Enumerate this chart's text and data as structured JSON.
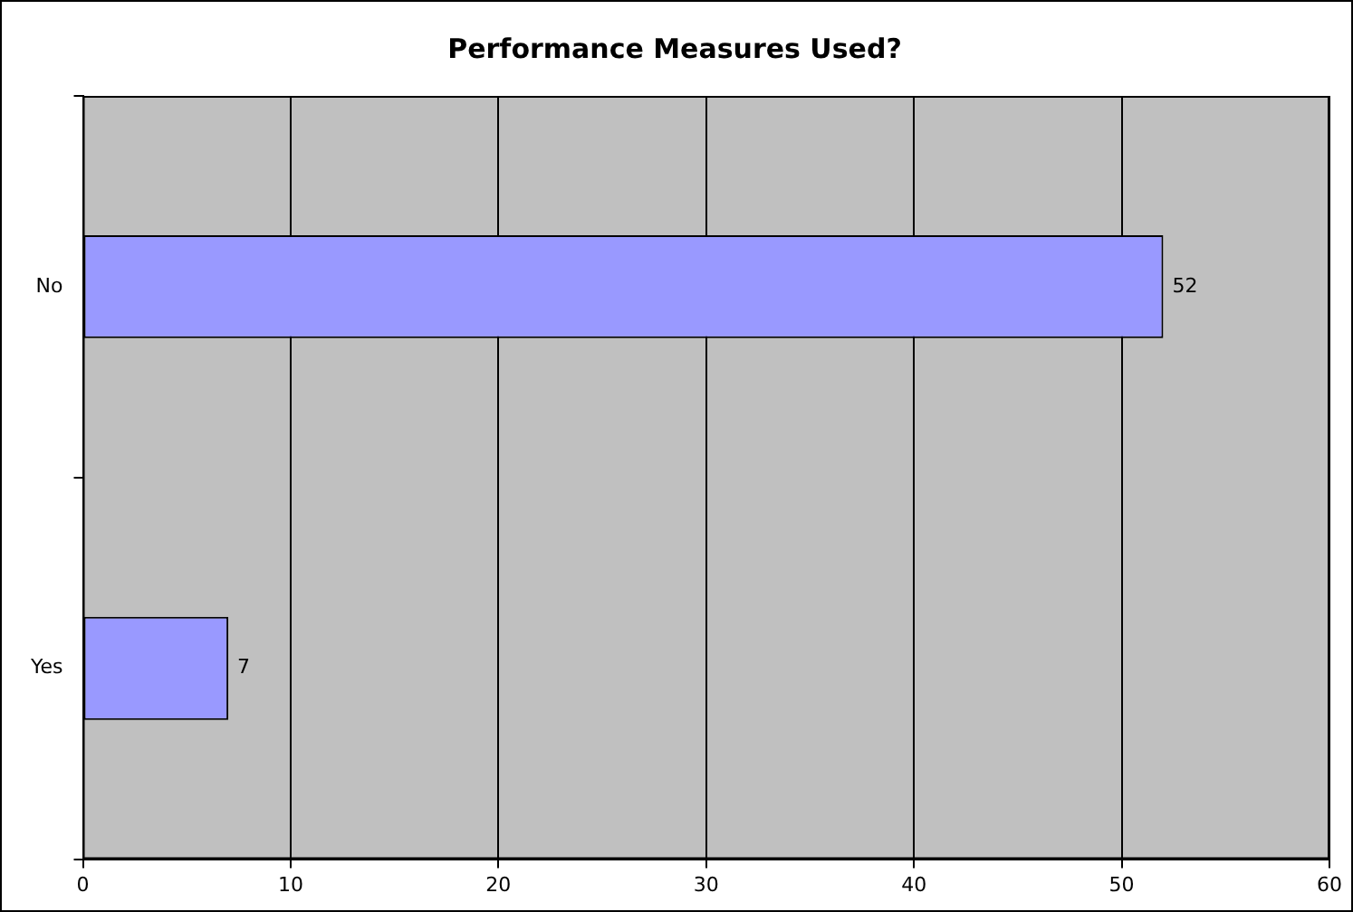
{
  "chart_data": {
    "type": "bar",
    "orientation": "horizontal",
    "title": "Performance Measures Used?",
    "categories": [
      "No",
      "Yes"
    ],
    "values": [
      52,
      7
    ],
    "color": "#9999ff",
    "xlim": [
      0,
      60
    ],
    "xticks": [
      0,
      10,
      20,
      30,
      40,
      50,
      60
    ],
    "grid": "x",
    "data_labels": true,
    "legend": false
  }
}
